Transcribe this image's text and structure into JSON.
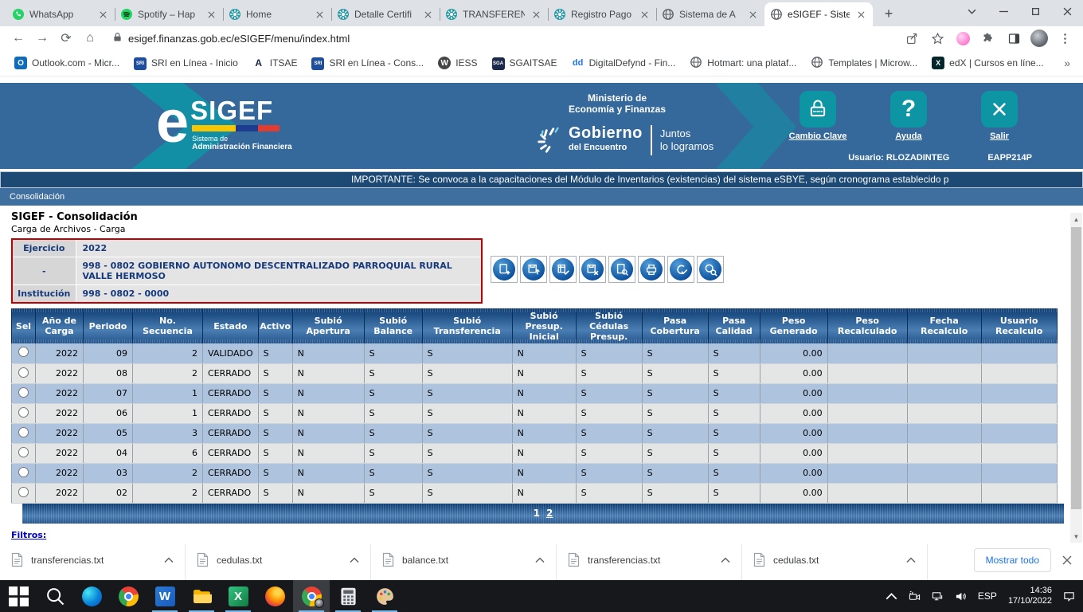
{
  "accent_colors": {
    "header_blue": "#35689b",
    "teal": "#0e95a4",
    "navy_text": "#16397c",
    "row_blue": "#aec3de",
    "row_gray": "#e4e6e6",
    "form_border_red": "#c00000",
    "table_header_navy": "#0e3d72"
  },
  "browser": {
    "tabs": [
      {
        "label": "WhatsApp",
        "icon": "whatsapp",
        "active": false
      },
      {
        "label": "Spotify – Hap",
        "icon": "spotify",
        "active": false
      },
      {
        "label": "Home",
        "icon": "rosette",
        "active": false
      },
      {
        "label": "Detalle Certifi",
        "icon": "rosette",
        "active": false
      },
      {
        "label": "TRANSFEREN",
        "icon": "rosette",
        "active": false
      },
      {
        "label": "Registro Pago",
        "icon": "rosette",
        "active": false
      },
      {
        "label": "Sistema de A",
        "icon": "globe",
        "active": false
      },
      {
        "label": "eSIGEF - Siste",
        "icon": "globe",
        "active": true
      }
    ],
    "url": "esigef.finanzas.gob.ec/eSIGEF/menu/index.html",
    "bookmarks": [
      {
        "label": "Outlook.com - Micr...",
        "icon": "outlook"
      },
      {
        "label": "SRI en Línea - Inicio",
        "icon": "sri"
      },
      {
        "label": "ITSAE",
        "icon": "itsae"
      },
      {
        "label": "SRI en Línea - Cons...",
        "icon": "sri"
      },
      {
        "label": "IESS",
        "icon": "wordpress"
      },
      {
        "label": "SGAITSAE",
        "icon": "sgaitsae"
      },
      {
        "label": "DigitalDefynd - Fin...",
        "icon": "dd"
      },
      {
        "label": "Hotmart: una plataf...",
        "icon": "globe"
      },
      {
        "label": "Templates | Microw...",
        "icon": "globe"
      },
      {
        "label": "edX | Cursos en líne...",
        "icon": "edx"
      }
    ],
    "bookmarks_overflow": "»"
  },
  "header": {
    "logo_e": "e",
    "logo_sigef": "SIGEF",
    "logo_sub1": "Sistema de",
    "logo_sub2": "Administración Financiera",
    "ministry_line1": "Ministerio de",
    "ministry_line2": "Economía y Finanzas",
    "gobierno_line1": "Gobierno",
    "gobierno_line2": "del Encuentro",
    "slogan_line1": "Juntos",
    "slogan_line2": "lo logramos",
    "actions": [
      {
        "label": "Cambio Clave",
        "icon": "lock-icon"
      },
      {
        "label": "Ayuda",
        "icon": "question-icon"
      },
      {
        "label": "Salir",
        "icon": "exit-icon"
      }
    ],
    "user": "Usuario: RLOZADINTEG",
    "terminal": "EAPP214P"
  },
  "notice": "IMPORTANTE: Se convoca a la capacitaciones del Módulo de Inventarios (existencias) del sistema eSBYE, según cronograma establecido p",
  "menu": {
    "items": [
      "Consolidación"
    ]
  },
  "main": {
    "title": "SIGEF - Consolidación",
    "subtitle": "Carga de Archivos - Carga",
    "params": [
      {
        "label": "Ejercicio",
        "value": "2022"
      },
      {
        "label": "-",
        "value": "998 - 0802 GOBIERNO AUTONOMO DESCENTRALIZADO PARROQUIAL RURAL VALLE HERMOSO"
      },
      {
        "label": "Institución",
        "value": "998 - 0802 - 0000"
      }
    ],
    "toolbar_icons": [
      "new-file-icon",
      "upload-file-icon",
      "validate-icon",
      "delete-file-icon",
      "view-details-icon",
      "print-icon",
      "approve-icon",
      "search-icon"
    ],
    "table": {
      "columns": [
        "Sel",
        "Año de Carga",
        "Periodo",
        "No. Secuencia",
        "Estado",
        "Activo",
        "Subió Apertura",
        "Subió Balance",
        "Subió Transferencia",
        "Subió Presup. Inicial",
        "Subió Cédulas Presup.",
        "Pasa Cobertura",
        "Pasa Calidad",
        "Peso Generado",
        "Peso Recalculado",
        "Fecha Recalculo",
        "Usuario Recalculo"
      ],
      "rows": [
        [
          "2022",
          "09",
          "2",
          "VALIDADO",
          "S",
          "N",
          "S",
          "S",
          "N",
          "S",
          "S",
          "S",
          "0.00",
          "",
          "",
          ""
        ],
        [
          "2022",
          "08",
          "2",
          "CERRADO",
          "S",
          "N",
          "S",
          "S",
          "N",
          "S",
          "S",
          "S",
          "0.00",
          "",
          "",
          ""
        ],
        [
          "2022",
          "07",
          "1",
          "CERRADO",
          "S",
          "N",
          "S",
          "S",
          "N",
          "S",
          "S",
          "S",
          "0.00",
          "",
          "",
          ""
        ],
        [
          "2022",
          "06",
          "1",
          "CERRADO",
          "S",
          "N",
          "S",
          "S",
          "N",
          "S",
          "S",
          "S",
          "0.00",
          "",
          "",
          ""
        ],
        [
          "2022",
          "05",
          "3",
          "CERRADO",
          "S",
          "N",
          "S",
          "S",
          "N",
          "S",
          "S",
          "S",
          "0.00",
          "",
          "",
          ""
        ],
        [
          "2022",
          "04",
          "6",
          "CERRADO",
          "S",
          "N",
          "S",
          "S",
          "N",
          "S",
          "S",
          "S",
          "0.00",
          "",
          "",
          ""
        ],
        [
          "2022",
          "03",
          "2",
          "CERRADO",
          "S",
          "N",
          "S",
          "S",
          "N",
          "S",
          "S",
          "S",
          "0.00",
          "",
          "",
          ""
        ],
        [
          "2022",
          "02",
          "2",
          "CERRADO",
          "S",
          "N",
          "S",
          "S",
          "N",
          "S",
          "S",
          "S",
          "0.00",
          "",
          "",
          ""
        ]
      ],
      "pages": [
        {
          "label": "1",
          "current": true
        },
        {
          "label": "2",
          "current": false
        }
      ]
    },
    "filters_label": "Filtros:"
  },
  "downloads": {
    "files": [
      "transferencias.txt",
      "cedulas.txt",
      "balance.txt",
      "transferencias.txt",
      "cedulas.txt"
    ],
    "show_all_label": "Mostrar todo"
  },
  "taskbar": {
    "icons": [
      "start",
      "search",
      "edge",
      "chrome",
      "word",
      "explorer",
      "excel",
      "firefox",
      "chrome-active",
      "calculator",
      "paint"
    ],
    "running": [
      "word",
      "explorer",
      "excel",
      "chrome-active",
      "calculator",
      "paint"
    ],
    "tray": {
      "language": "ESP",
      "time": "14:36",
      "date": "17/10/2022"
    }
  }
}
